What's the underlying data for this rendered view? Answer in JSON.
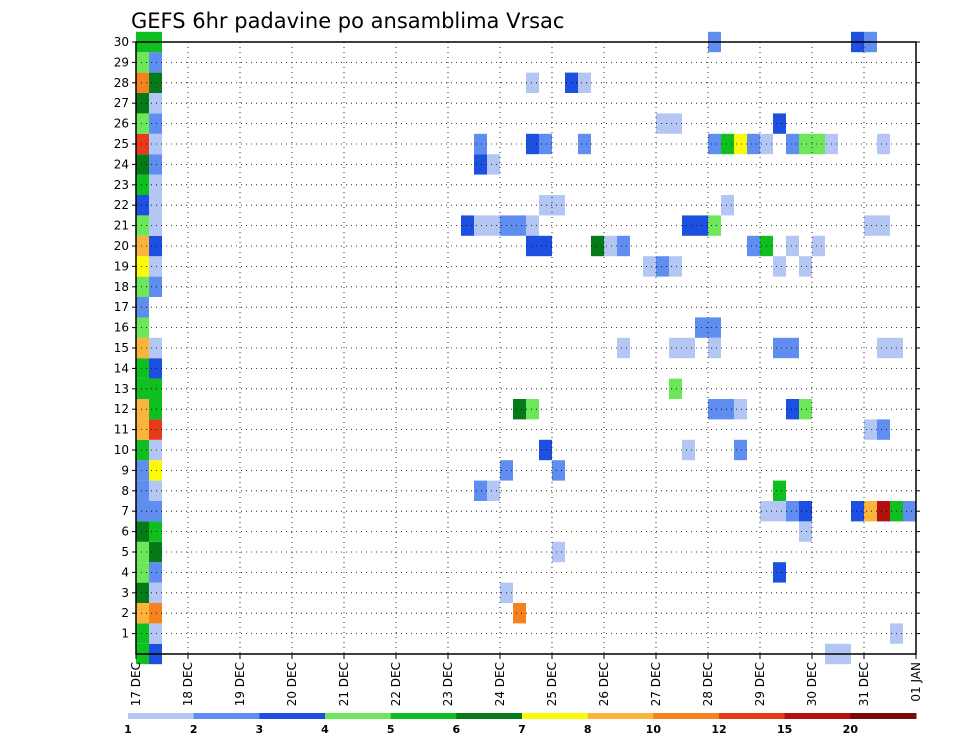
{
  "chart_data": {
    "type": "heatmap",
    "title": "GEFS 6hr padavine po ansamblima Vrsac",
    "xlabel": "",
    "ylabel": "",
    "x_tick_labels": [
      "17 DEC",
      "18 DEC",
      "19 DEC",
      "20 DEC",
      "21 DEC",
      "22 DEC",
      "23 DEC",
      "24 DEC",
      "25 DEC",
      "26 DEC",
      "27 DEC",
      "28 DEC",
      "29 DEC",
      "30 DEC",
      "31 DEC",
      "01 JAN"
    ],
    "y_tick_labels": [
      "1",
      "2",
      "3",
      "4",
      "5",
      "6",
      "7",
      "8",
      "9",
      "10",
      "11",
      "12",
      "13",
      "14",
      "15",
      "16",
      "17",
      "18",
      "19",
      "20",
      "21",
      "22",
      "23",
      "24",
      "25",
      "26",
      "27",
      "28",
      "29",
      "30"
    ],
    "xlim_days": [
      0,
      15
    ],
    "ylim_members": [
      0,
      30
    ],
    "grid": true,
    "colorbar": {
      "placement": "bottom",
      "bounds": [
        "1",
        "2",
        "3",
        "4",
        "5",
        "6",
        "7",
        "8",
        "10",
        "12",
        "15",
        "20"
      ],
      "colors": [
        "#b3c6f4",
        "#5f8ef0",
        "#1d4fe0",
        "#6ee65a",
        "#0fbf1f",
        "#067a18",
        "#fafa0a",
        "#fab43c",
        "#f5821e",
        "#e63a1a",
        "#b31010",
        "#7a0a0a"
      ]
    },
    "cells": [
      {
        "day": 0.0,
        "m": 0,
        "c": 4
      },
      {
        "day": 0.0,
        "m": 1,
        "c": 4
      },
      {
        "day": 0.0,
        "m": 2,
        "c": 7
      },
      {
        "day": 0.0,
        "m": 3,
        "c": 5
      },
      {
        "day": 0.0,
        "m": 4,
        "c": 3
      },
      {
        "day": 0.0,
        "m": 5,
        "c": 3
      },
      {
        "day": 0.0,
        "m": 6,
        "c": 5
      },
      {
        "day": 0.0,
        "m": 7,
        "c": 1
      },
      {
        "day": 0.0,
        "m": 8,
        "c": 1
      },
      {
        "day": 0.0,
        "m": 9,
        "c": 1
      },
      {
        "day": 0.0,
        "m": 10,
        "c": 4
      },
      {
        "day": 0.0,
        "m": 11,
        "c": 7
      },
      {
        "day": 0.0,
        "m": 12,
        "c": 7
      },
      {
        "day": 0.0,
        "m": 13,
        "c": 4
      },
      {
        "day": 0.0,
        "m": 14,
        "c": 4
      },
      {
        "day": 0.0,
        "m": 15,
        "c": 7
      },
      {
        "day": 0.0,
        "m": 16,
        "c": 3
      },
      {
        "day": 0.0,
        "m": 17,
        "c": 1
      },
      {
        "day": 0.0,
        "m": 18,
        "c": 3
      },
      {
        "day": 0.0,
        "m": 19,
        "c": 6
      },
      {
        "day": 0.0,
        "m": 20,
        "c": 7
      },
      {
        "day": 0.0,
        "m": 21,
        "c": 3
      },
      {
        "day": 0.0,
        "m": 22,
        "c": 2
      },
      {
        "day": 0.0,
        "m": 23,
        "c": 4
      },
      {
        "day": 0.0,
        "m": 24,
        "c": 5
      },
      {
        "day": 0.0,
        "m": 25,
        "c": 9
      },
      {
        "day": 0.0,
        "m": 26,
        "c": 3
      },
      {
        "day": 0.0,
        "m": 27,
        "c": 5
      },
      {
        "day": 0.0,
        "m": 28,
        "c": 8
      },
      {
        "day": 0.0,
        "m": 29,
        "c": 3
      },
      {
        "day": 0.0,
        "m": 30,
        "c": 4
      },
      {
        "day": 0.25,
        "m": 0,
        "c": 2
      },
      {
        "day": 0.25,
        "m": 1,
        "c": 0
      },
      {
        "day": 0.25,
        "m": 2,
        "c": 8
      },
      {
        "day": 0.25,
        "m": 3,
        "c": 0
      },
      {
        "day": 0.25,
        "m": 4,
        "c": 1
      },
      {
        "day": 0.25,
        "m": 5,
        "c": 5
      },
      {
        "day": 0.25,
        "m": 6,
        "c": 4
      },
      {
        "day": 0.25,
        "m": 7,
        "c": 1
      },
      {
        "day": 0.25,
        "m": 8,
        "c": 0
      },
      {
        "day": 0.25,
        "m": 9,
        "c": 6
      },
      {
        "day": 0.25,
        "m": 10,
        "c": 0
      },
      {
        "day": 0.25,
        "m": 11,
        "c": 9
      },
      {
        "day": 0.25,
        "m": 12,
        "c": 4
      },
      {
        "day": 0.25,
        "m": 13,
        "c": 4
      },
      {
        "day": 0.25,
        "m": 14,
        "c": 2
      },
      {
        "day": 0.25,
        "m": 15,
        "c": 0
      },
      {
        "day": 0.25,
        "m": 18,
        "c": 1
      },
      {
        "day": 0.25,
        "m": 19,
        "c": 0
      },
      {
        "day": 0.25,
        "m": 20,
        "c": 2
      },
      {
        "day": 0.25,
        "m": 21,
        "c": 0
      },
      {
        "day": 0.25,
        "m": 22,
        "c": 0
      },
      {
        "day": 0.25,
        "m": 23,
        "c": 0
      },
      {
        "day": 0.25,
        "m": 24,
        "c": 1
      },
      {
        "day": 0.25,
        "m": 25,
        "c": 0
      },
      {
        "day": 0.25,
        "m": 26,
        "c": 1
      },
      {
        "day": 0.25,
        "m": 27,
        "c": 0
      },
      {
        "day": 0.25,
        "m": 28,
        "c": 5
      },
      {
        "day": 0.25,
        "m": 29,
        "c": 1
      },
      {
        "day": 0.25,
        "m": 30,
        "c": 4
      },
      {
        "day": 0.0,
        "m": 17,
        "c": 1
      },
      {
        "day": 6.5,
        "m": 8,
        "c": 1
      },
      {
        "day": 6.75,
        "m": 8,
        "c": 0
      },
      {
        "day": 6.25,
        "m": 21,
        "c": 2
      },
      {
        "day": 6.5,
        "m": 21,
        "c": 0
      },
      {
        "day": 6.75,
        "m": 21,
        "c": 0
      },
      {
        "day": 7.0,
        "m": 21,
        "c": 1
      },
      {
        "day": 7.25,
        "m": 21,
        "c": 1
      },
      {
        "day": 7.5,
        "m": 21,
        "c": 0
      },
      {
        "day": 6.5,
        "m": 24,
        "c": 2
      },
      {
        "day": 6.75,
        "m": 24,
        "c": 0
      },
      {
        "day": 6.5,
        "m": 25,
        "c": 1
      },
      {
        "day": 7.0,
        "m": 9,
        "c": 1
      },
      {
        "day": 7.0,
        "m": 3,
        "c": 0
      },
      {
        "day": 7.25,
        "m": 2,
        "c": 8
      },
      {
        "day": 7.25,
        "m": 12,
        "c": 5
      },
      {
        "day": 7.5,
        "m": 12,
        "c": 3
      },
      {
        "day": 7.5,
        "m": 20,
        "c": 2
      },
      {
        "day": 7.75,
        "m": 20,
        "c": 2
      },
      {
        "day": 7.5,
        "m": 25,
        "c": 2
      },
      {
        "day": 7.75,
        "m": 25,
        "c": 1
      },
      {
        "day": 7.5,
        "m": 28,
        "c": 0
      },
      {
        "day": 7.75,
        "m": 22,
        "c": 0
      },
      {
        "day": 8.0,
        "m": 22,
        "c": 0
      },
      {
        "day": 7.75,
        "m": 10,
        "c": 2
      },
      {
        "day": 8.0,
        "m": 9,
        "c": 1
      },
      {
        "day": 8.0,
        "m": 5,
        "c": 0
      },
      {
        "day": 8.25,
        "m": 28,
        "c": 2
      },
      {
        "day": 8.5,
        "m": 28,
        "c": 0
      },
      {
        "day": 8.5,
        "m": 25,
        "c": 1
      },
      {
        "day": 8.75,
        "m": 20,
        "c": 5
      },
      {
        "day": 9.0,
        "m": 20,
        "c": 0
      },
      {
        "day": 9.25,
        "m": 20,
        "c": 1
      },
      {
        "day": 9.25,
        "m": 15,
        "c": 0
      },
      {
        "day": 9.75,
        "m": 19,
        "c": 0
      },
      {
        "day": 10.0,
        "m": 19,
        "c": 1
      },
      {
        "day": 10.25,
        "m": 19,
        "c": 0
      },
      {
        "day": 10.0,
        "m": 26,
        "c": 0
      },
      {
        "day": 10.25,
        "m": 26,
        "c": 0
      },
      {
        "day": 10.25,
        "m": 13,
        "c": 3
      },
      {
        "day": 10.25,
        "m": 15,
        "c": 0
      },
      {
        "day": 10.5,
        "m": 15,
        "c": 0
      },
      {
        "day": 10.5,
        "m": 10,
        "c": 0
      },
      {
        "day": 10.5,
        "m": 21,
        "c": 2
      },
      {
        "day": 10.75,
        "m": 21,
        "c": 2
      },
      {
        "day": 11.0,
        "m": 21,
        "c": 3
      },
      {
        "day": 10.75,
        "m": 16,
        "c": 1
      },
      {
        "day": 11.0,
        "m": 16,
        "c": 1
      },
      {
        "day": 11.0,
        "m": 15,
        "c": 0
      },
      {
        "day": 11.0,
        "m": 12,
        "c": 1
      },
      {
        "day": 11.25,
        "m": 12,
        "c": 1
      },
      {
        "day": 11.5,
        "m": 12,
        "c": 0
      },
      {
        "day": 11.0,
        "m": 25,
        "c": 1
      },
      {
        "day": 11.25,
        "m": 25,
        "c": 4
      },
      {
        "day": 11.5,
        "m": 25,
        "c": 6
      },
      {
        "day": 11.75,
        "m": 25,
        "c": 1
      },
      {
        "day": 11.0,
        "m": 30,
        "c": 1
      },
      {
        "day": 11.25,
        "m": 22,
        "c": 0
      },
      {
        "day": 11.5,
        "m": 10,
        "c": 1
      },
      {
        "day": 11.75,
        "m": 20,
        "c": 1
      },
      {
        "day": 12.0,
        "m": 20,
        "c": 4
      },
      {
        "day": 12.0,
        "m": 25,
        "c": 0
      },
      {
        "day": 12.0,
        "m": 7,
        "c": 0
      },
      {
        "day": 12.25,
        "m": 7,
        "c": 0
      },
      {
        "day": 12.5,
        "m": 7,
        "c": 1
      },
      {
        "day": 12.75,
        "m": 7,
        "c": 2
      },
      {
        "day": 12.25,
        "m": 8,
        "c": 4
      },
      {
        "day": 12.25,
        "m": 4,
        "c": 2
      },
      {
        "day": 12.25,
        "m": 15,
        "c": 1
      },
      {
        "day": 12.5,
        "m": 15,
        "c": 1
      },
      {
        "day": 12.25,
        "m": 19,
        "c": 0
      },
      {
        "day": 12.25,
        "m": 26,
        "c": 2
      },
      {
        "day": 12.5,
        "m": 20,
        "c": 0
      },
      {
        "day": 12.5,
        "m": 25,
        "c": 1
      },
      {
        "day": 12.75,
        "m": 25,
        "c": 3
      },
      {
        "day": 13.0,
        "m": 25,
        "c": 3
      },
      {
        "day": 13.25,
        "m": 25,
        "c": 0
      },
      {
        "day": 12.5,
        "m": 12,
        "c": 2
      },
      {
        "day": 12.75,
        "m": 12,
        "c": 3
      },
      {
        "day": 12.75,
        "m": 19,
        "c": 0
      },
      {
        "day": 13.0,
        "m": 20,
        "c": 0
      },
      {
        "day": 12.75,
        "m": 6,
        "c": 0
      },
      {
        "day": 13.25,
        "m": 0,
        "c": 0
      },
      {
        "day": 13.5,
        "m": 0,
        "c": 0
      },
      {
        "day": 13.75,
        "m": 7,
        "c": 2
      },
      {
        "day": 14.0,
        "m": 7,
        "c": 7
      },
      {
        "day": 14.25,
        "m": 7,
        "c": 10
      },
      {
        "day": 14.5,
        "m": 7,
        "c": 4
      },
      {
        "day": 14.75,
        "m": 7,
        "c": 1
      },
      {
        "day": 13.75,
        "m": 30,
        "c": 2
      },
      {
        "day": 14.0,
        "m": 30,
        "c": 1
      },
      {
        "day": 14.0,
        "m": 11,
        "c": 0
      },
      {
        "day": 14.25,
        "m": 11,
        "c": 1
      },
      {
        "day": 14.0,
        "m": 21,
        "c": 0
      },
      {
        "day": 14.25,
        "m": 21,
        "c": 0
      },
      {
        "day": 14.25,
        "m": 25,
        "c": 0
      },
      {
        "day": 14.25,
        "m": 15,
        "c": 0
      },
      {
        "day": 14.5,
        "m": 15,
        "c": 0
      },
      {
        "day": 14.5,
        "m": 1,
        "c": 0
      }
    ]
  }
}
